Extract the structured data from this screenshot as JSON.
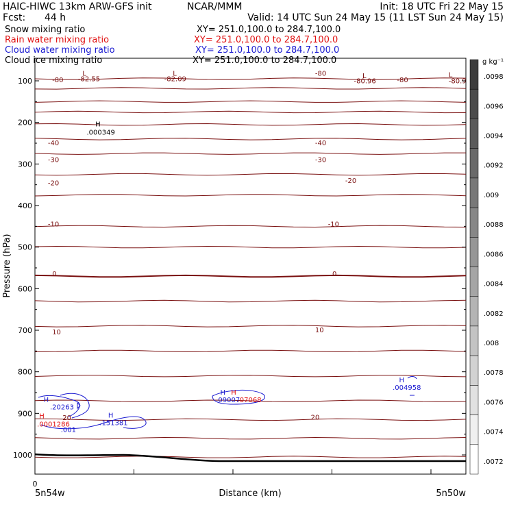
{
  "header": {
    "line1_left": "HAIC-HIWC 13km ARW-GFS init",
    "line1_mid": "NCAR/MMM",
    "line1_right": "Init: 18 UTC Fri 22 May 15",
    "line2_left": "Fcst:",
    "line2_fcst": "44 h",
    "line2_right": "Valid: 14 UTC Sun 24 May 15 (11 LST Sun 24 May 15)"
  },
  "fields": [
    {
      "name": "Snow mixing ratio",
      "xy": "XY= 251.0,100.0 to 284.7,100.0",
      "color": "#000000"
    },
    {
      "name": "Rain water mixing ratio",
      "xy": "XY= 251.0,100.0 to 284.7,100.0",
      "color": "#e01010"
    },
    {
      "name": "Cloud water mixing ratio",
      "xy": "XY= 251.0,100.0 to 284.7,100.0",
      "color": "#1a1ad0"
    },
    {
      "name": "Cloud ice mixing ratio",
      "xy": "XY= 251.0,100.0 to 284.7,100.0",
      "color": "#000000"
    }
  ],
  "colors": {
    "isotherm": "#7a1010",
    "rain": "#e01010",
    "cloud": "#1a1ad0",
    "black": "#000000"
  },
  "chart_data": {
    "type": "contour",
    "ylabel": "Pressure (hPa)",
    "xlabel": "Distance (km)",
    "x_left_label": "5n54w",
    "x_right_label": "5n50w",
    "x_zero_label": "0",
    "y_ticks": [
      100,
      200,
      300,
      400,
      500,
      600,
      700,
      800,
      900,
      1000
    ],
    "isotherm_levels": [
      {
        "p": 95,
        "label": "-80"
      },
      {
        "p": 118,
        "label": ""
      },
      {
        "p": 150,
        "label": ""
      },
      {
        "p": 175,
        "label": ""
      },
      {
        "p": 205,
        "label": ""
      },
      {
        "p": 240,
        "label": "-40"
      },
      {
        "p": 275,
        "label": "-30"
      },
      {
        "p": 325,
        "label": "-20"
      },
      {
        "p": 375,
        "label": ""
      },
      {
        "p": 450,
        "label": "-10"
      },
      {
        "p": 500,
        "label": ""
      },
      {
        "p": 570,
        "label": "0"
      },
      {
        "p": 630,
        "label": ""
      },
      {
        "p": 690,
        "label": "10"
      },
      {
        "p": 750,
        "label": ""
      },
      {
        "p": 810,
        "label": ""
      },
      {
        "p": 870,
        "label": ""
      },
      {
        "p": 915,
        "label": "20"
      },
      {
        "p": 960,
        "label": ""
      },
      {
        "p": 1005,
        "label": ""
      }
    ],
    "annotations": [
      {
        "text": "-80",
        "color": "isotherm",
        "x": 0.04,
        "p": 103
      },
      {
        "text": "-82.55",
        "color": "isotherm",
        "x": 0.1,
        "p": 101
      },
      {
        "text": "-82.09",
        "color": "isotherm",
        "x": 0.3,
        "p": 101
      },
      {
        "text": "-80",
        "color": "isotherm",
        "x": 0.65,
        "p": 88
      },
      {
        "text": "-80.96",
        "color": "isotherm",
        "x": 0.74,
        "p": 106
      },
      {
        "text": "-80",
        "color": "isotherm",
        "x": 0.84,
        "p": 103
      },
      {
        "text": "-80.9",
        "color": "isotherm",
        "x": 0.96,
        "p": 106
      },
      {
        "text": ".000349",
        "color": "black",
        "x": 0.12,
        "p": 229
      },
      {
        "text": "-40",
        "color": "isotherm",
        "x": 0.03,
        "p": 255
      },
      {
        "text": "-40",
        "color": "isotherm",
        "x": 0.65,
        "p": 255
      },
      {
        "text": "-30",
        "color": "isotherm",
        "x": 0.03,
        "p": 295
      },
      {
        "text": "-30",
        "color": "isotherm",
        "x": 0.65,
        "p": 295
      },
      {
        "text": "-20",
        "color": "isotherm",
        "x": 0.03,
        "p": 351
      },
      {
        "text": "-20",
        "color": "isotherm",
        "x": 0.72,
        "p": 346
      },
      {
        "text": "-10",
        "color": "isotherm",
        "x": 0.03,
        "p": 450
      },
      {
        "text": "-10",
        "color": "isotherm",
        "x": 0.68,
        "p": 450
      },
      {
        "text": "0",
        "color": "isotherm",
        "x": 0.04,
        "p": 570
      },
      {
        "text": "0",
        "color": "isotherm",
        "x": 0.69,
        "p": 570
      },
      {
        "text": "10",
        "color": "isotherm",
        "x": 0.04,
        "p": 710
      },
      {
        "text": "10",
        "color": "isotherm",
        "x": 0.65,
        "p": 705
      },
      {
        "text": "20",
        "color": "isotherm",
        "x": 0.64,
        "p": 915
      },
      {
        "text": "20",
        "color": "isotherm",
        "x": 0.064,
        "p": 916
      },
      {
        "text": ".20263",
        "color": "cloud",
        "x": 0.035,
        "p": 890
      },
      {
        "text": ".001",
        "color": "cloud",
        "x": 0.06,
        "p": 945
      },
      {
        "text": ".151381",
        "color": "cloud",
        "x": 0.15,
        "p": 928
      },
      {
        "text": ".0001286",
        "color": "rain",
        "x": 0.005,
        "p": 932
      },
      {
        "text": ".09007",
        "color": "cloud",
        "x": 0.42,
        "p": 873
      },
      {
        "text": ".07068",
        "color": "rain",
        "x": 0.47,
        "p": 873
      },
      {
        "text": ".004958",
        "color": "cloud",
        "x": 0.83,
        "p": 843
      }
    ],
    "extrema_marks": [
      {
        "text": "L",
        "color": "isotherm",
        "x": 0.11,
        "p": 88
      },
      {
        "text": "L",
        "color": "isotherm",
        "x": 0.32,
        "p": 88
      },
      {
        "text": "L",
        "color": "isotherm",
        "x": 0.76,
        "p": 93
      },
      {
        "text": "L",
        "color": "isotherm",
        "x": 0.96,
        "p": 91
      },
      {
        "text": "H",
        "color": "black",
        "x": 0.14,
        "p": 210
      },
      {
        "text": "H",
        "color": "cloud",
        "x": 0.02,
        "p": 872
      },
      {
        "text": "H",
        "color": "rain",
        "x": 0.01,
        "p": 912
      },
      {
        "text": "H",
        "color": "cloud",
        "x": 0.17,
        "p": 910
      },
      {
        "text": "H",
        "color": "cloud",
        "x": 0.43,
        "p": 855
      },
      {
        "text": "H",
        "color": "rain",
        "x": 0.455,
        "p": 855
      },
      {
        "text": "H",
        "color": "cloud",
        "x": 0.845,
        "p": 825
      }
    ],
    "colorbar": {
      "units": "g kg⁻¹",
      "labels": [
        ".0098",
        ".0096",
        ".0094",
        ".0092",
        ".009",
        ".0088",
        ".0086",
        ".0084",
        ".0082",
        ".008",
        ".0078",
        ".0076",
        ".0074",
        ".0072"
      ]
    }
  }
}
